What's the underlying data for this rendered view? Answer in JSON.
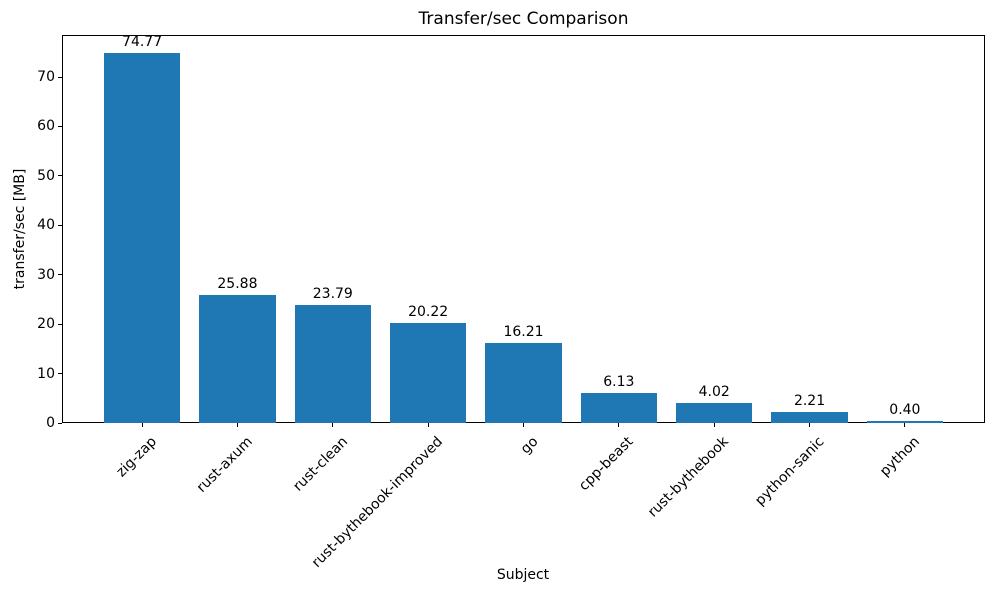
{
  "chart_data": {
    "type": "bar",
    "title": "Transfer/sec Comparison",
    "xlabel": "Subject",
    "ylabel": "transfer/sec [MB]",
    "categories": [
      "zig-zap",
      "rust-axum",
      "rust-clean",
      "rust-bythebook-improved",
      "go",
      "cpp-beast",
      "rust-bythebook",
      "python-sanic",
      "python"
    ],
    "values": [
      74.77,
      25.88,
      23.79,
      20.22,
      16.21,
      6.13,
      4.02,
      2.21,
      0.4
    ],
    "value_labels": [
      "74.77",
      "25.88",
      "23.79",
      "20.22",
      "16.21",
      "6.13",
      "4.02",
      "2.21",
      "0.40"
    ],
    "yticks": [
      0,
      10,
      20,
      30,
      40,
      50,
      60,
      70
    ],
    "ylim": [
      0,
      78.5
    ],
    "bar_color": "#1f77b4",
    "grid": false,
    "legend": "none"
  }
}
